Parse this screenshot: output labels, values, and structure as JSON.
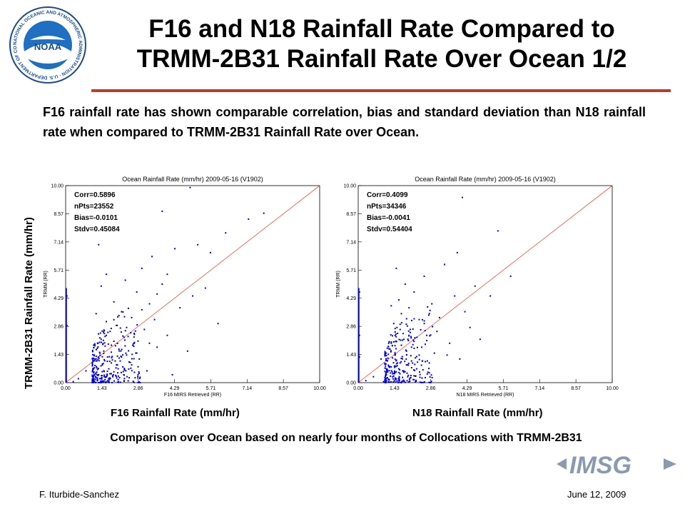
{
  "header": {
    "title_line1": "F16 and N18 Rainfall Rate Compared to",
    "title_line2": "TRMM-2B31  Rainfall Rate Over Ocean 1/2",
    "logo_text": "NOAA",
    "logo_ring_text": "NATIONAL OCEANIC AND ATMOSPHERIC ADMINISTRATION · U.S. DEPARTMENT OF COMMERCE",
    "accent_color": "#c0392b"
  },
  "intro_text": "F16 rainfall rate has shown comparable correlation, bias and standard deviation than N18 rainfall rate when compared to TRMM-2B31  Rainfall Rate over Ocean.",
  "main_ylabel": "TRMM-2B31 Rainfall Rate (mm/hr)",
  "chart_data": [
    {
      "type": "scatter",
      "title": "Ocean Rainfall Rate (mm/hr) 2009-05-16 (V1902)",
      "xlabel": "F16 MIRS Retrieved (RR)",
      "ylabel": "TRMM (RR)",
      "caption": "F16 Rainfall Rate (mm/hr)",
      "xlim": [
        0,
        10
      ],
      "ylim": [
        0,
        10
      ],
      "ticks": [
        "0.00",
        "1.43",
        "2.86",
        "4.29",
        "5.71",
        "7.14",
        "8.57",
        "10.00"
      ],
      "stats": [
        "Corr=0.5896",
        "nPts=23552",
        "Bias=-0.0101",
        "Stdv=0.45084"
      ],
      "reference_line": "1:1",
      "point_color": "#0000cc",
      "line_color": "#e74c3c",
      "points": [
        [
          0.3,
          0.05
        ],
        [
          0.5,
          0.2
        ],
        [
          0.8,
          0.6
        ],
        [
          1.1,
          0.3
        ],
        [
          1.2,
          1.1
        ],
        [
          1.3,
          0.4
        ],
        [
          1.4,
          2.2
        ],
        [
          1.45,
          0.9
        ],
        [
          1.5,
          1.6
        ],
        [
          1.55,
          0.15
        ],
        [
          1.6,
          3.1
        ],
        [
          1.65,
          1.3
        ],
        [
          1.7,
          0.7
        ],
        [
          1.75,
          2.6
        ],
        [
          1.8,
          1.9
        ],
        [
          1.85,
          0.35
        ],
        [
          1.9,
          4.1
        ],
        [
          1.95,
          1.1
        ],
        [
          2.0,
          2.9
        ],
        [
          2.05,
          0.5
        ],
        [
          2.1,
          1.7
        ],
        [
          2.2,
          3.6
        ],
        [
          2.25,
          0.8
        ],
        [
          2.3,
          2.3
        ],
        [
          2.35,
          5.2
        ],
        [
          2.4,
          1.4
        ],
        [
          2.5,
          0.25
        ],
        [
          2.6,
          3.3
        ],
        [
          2.7,
          2.0
        ],
        [
          2.8,
          4.6
        ],
        [
          2.9,
          1.2
        ],
        [
          3.0,
          5.8
        ],
        [
          3.1,
          2.7
        ],
        [
          3.2,
          0.6
        ],
        [
          3.3,
          4.0
        ],
        [
          3.4,
          6.4
        ],
        [
          3.5,
          3.2
        ],
        [
          3.6,
          1.8
        ],
        [
          3.8,
          5.0
        ],
        [
          4.0,
          2.4
        ],
        [
          4.2,
          0.4
        ],
        [
          4.3,
          6.8
        ],
        [
          4.5,
          3.8
        ],
        [
          4.8,
          1.6
        ],
        [
          5.0,
          4.4
        ],
        [
          5.2,
          7.0
        ],
        [
          5.5,
          4.8
        ],
        [
          5.7,
          6.6
        ],
        [
          6.0,
          3.0
        ],
        [
          6.3,
          7.6
        ],
        [
          7.2,
          8.3
        ],
        [
          7.8,
          8.6
        ],
        [
          3.8,
          8.7
        ],
        [
          4.9,
          9.9
        ],
        [
          1.3,
          7.0
        ],
        [
          2.7,
          2.5
        ],
        [
          1.15,
          1.9
        ],
        [
          1.25,
          0.1
        ],
        [
          1.35,
          1.5
        ],
        [
          1.5,
          0.6
        ],
        [
          1.6,
          2.4
        ],
        [
          1.7,
          0.2
        ],
        [
          1.8,
          1.0
        ],
        [
          1.9,
          2.1
        ],
        [
          2.0,
          0.9
        ],
        [
          2.1,
          3.4
        ],
        [
          2.2,
          1.3
        ],
        [
          2.4,
          2.8
        ],
        [
          2.6,
          0.9
        ],
        [
          2.8,
          1.5
        ],
        [
          3.0,
          3.7
        ],
        [
          3.3,
          2.0
        ],
        [
          3.6,
          4.5
        ],
        [
          4.0,
          5.5
        ],
        [
          1.4,
          4.9
        ],
        [
          1.6,
          5.5
        ],
        [
          1.2,
          3.5
        ],
        [
          2.3,
          0.1
        ],
        [
          1.9,
          0.55
        ],
        [
          1.05,
          0.85
        ],
        [
          0.05,
          2.9
        ],
        [
          0.05,
          4.4
        ]
      ]
    },
    {
      "type": "scatter",
      "title": "Ocean Rainfall Rate (mm/hr) 2009-05-16 (V1902)",
      "xlabel": "N18 MIRS Retrieved (RR)",
      "ylabel": "TRMM (RR)",
      "caption": "N18 Rainfall Rate (mm/hr)",
      "xlim": [
        0,
        10
      ],
      "ylim": [
        0,
        10
      ],
      "ticks": [
        "0.00",
        "1.43",
        "2.86",
        "4.29",
        "5.71",
        "7.14",
        "8.57",
        "10.00"
      ],
      "stats": [
        "Corr=0.4099",
        "nPts=34346",
        "Bias=-0.0041",
        "Stdv=0.54404"
      ],
      "reference_line": "1:1",
      "point_color": "#0000cc",
      "line_color": "#e74c3c",
      "points": [
        [
          0.3,
          0.1
        ],
        [
          0.6,
          0.3
        ],
        [
          0.9,
          1.2
        ],
        [
          1.1,
          0.5
        ],
        [
          1.2,
          2.0
        ],
        [
          1.3,
          0.8
        ],
        [
          1.4,
          3.0
        ],
        [
          1.45,
          1.4
        ],
        [
          1.5,
          0.2
        ],
        [
          1.55,
          2.5
        ],
        [
          1.6,
          4.2
        ],
        [
          1.65,
          1.0
        ],
        [
          1.7,
          3.5
        ],
        [
          1.75,
          0.6
        ],
        [
          1.8,
          2.2
        ],
        [
          1.85,
          5.0
        ],
        [
          1.9,
          1.6
        ],
        [
          1.95,
          0.3
        ],
        [
          2.0,
          3.8
        ],
        [
          2.05,
          2.7
        ],
        [
          2.1,
          1.1
        ],
        [
          2.2,
          4.6
        ],
        [
          2.3,
          0.7
        ],
        [
          2.4,
          3.2
        ],
        [
          2.5,
          1.8
        ],
        [
          2.6,
          5.4
        ],
        [
          2.7,
          2.4
        ],
        [
          2.8,
          0.5
        ],
        [
          2.9,
          4.0
        ],
        [
          3.0,
          1.5
        ],
        [
          3.2,
          3.3
        ],
        [
          3.4,
          6.0
        ],
        [
          3.6,
          2.0
        ],
        [
          3.8,
          4.4
        ],
        [
          4.0,
          1.2
        ],
        [
          4.2,
          3.6
        ],
        [
          4.4,
          2.8
        ],
        [
          4.6,
          4.9
        ],
        [
          4.8,
          2.2
        ],
        [
          5.2,
          4.4
        ],
        [
          5.5,
          7.7
        ],
        [
          6.0,
          5.4
        ],
        [
          4.1,
          9.4
        ],
        [
          3.9,
          6.6
        ],
        [
          1.0,
          0.05
        ],
        [
          1.25,
          1.7
        ],
        [
          1.35,
          0.45
        ],
        [
          1.55,
          1.0
        ],
        [
          1.7,
          1.9
        ],
        [
          1.9,
          0.9
        ],
        [
          2.0,
          2.4
        ],
        [
          2.2,
          0.35
        ],
        [
          2.4,
          1.4
        ],
        [
          2.6,
          3.0
        ],
        [
          2.8,
          1.0
        ],
        [
          3.1,
          2.6
        ],
        [
          3.5,
          1.4
        ],
        [
          1.5,
          5.8
        ],
        [
          1.3,
          3.9
        ],
        [
          0.05,
          2.4
        ],
        [
          0.05,
          4.6
        ],
        [
          0.05,
          1.3
        ],
        [
          1.15,
          0.25
        ],
        [
          1.6,
          0.7
        ],
        [
          2.1,
          1.8
        ]
      ]
    }
  ],
  "captions": {
    "comparison": "Comparison over Ocean based on nearly four months of Collocations with TRMM-2B31"
  },
  "imsg_logo_text": "IMSG",
  "footer": {
    "author": "F. Iturbide-Sanchez",
    "date": "June 12, 2009"
  }
}
